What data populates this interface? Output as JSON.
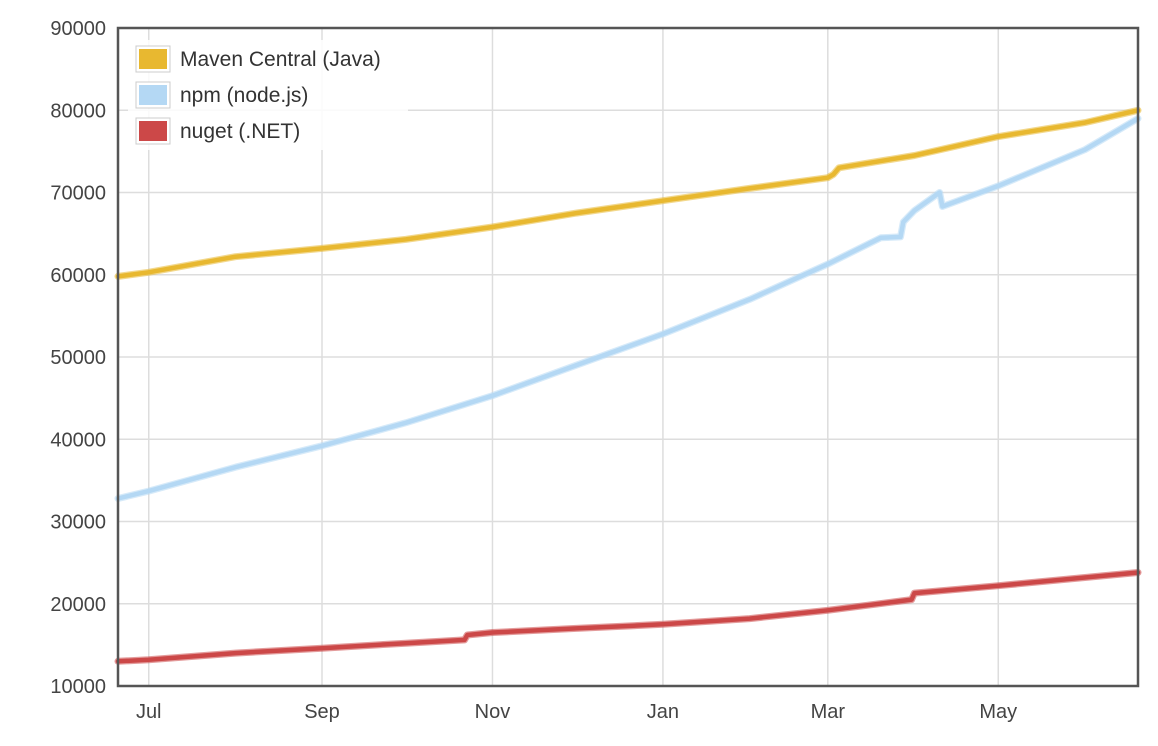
{
  "chart_data": {
    "type": "line",
    "x_axis": {
      "tick_labels": [
        "Jul",
        "Sep",
        "Nov",
        "Jan",
        "Mar",
        "May"
      ],
      "tick_dates": [
        "2014-07-01",
        "2014-09-01",
        "2014-11-01",
        "2015-01-01",
        "2015-03-01",
        "2015-05-01"
      ],
      "range": [
        "2014-06-20",
        "2015-06-20"
      ]
    },
    "y_axis": {
      "tick_labels": [
        "10000",
        "20000",
        "30000",
        "40000",
        "50000",
        "60000",
        "70000",
        "80000",
        "90000"
      ],
      "ylim": [
        10000,
        90000
      ]
    },
    "grid": true,
    "legend_position": "top-left",
    "series": [
      {
        "name": "Maven Central (Java)",
        "color": "#e8b830",
        "points": [
          [
            "2014-06-20",
            59800
          ],
          [
            "2014-07-01",
            60300
          ],
          [
            "2014-08-01",
            62200
          ],
          [
            "2014-09-01",
            63200
          ],
          [
            "2014-10-01",
            64300
          ],
          [
            "2014-11-01",
            65800
          ],
          [
            "2014-12-01",
            67500
          ],
          [
            "2015-01-01",
            69000
          ],
          [
            "2015-02-01",
            70500
          ],
          [
            "2015-03-01",
            71800
          ],
          [
            "2015-03-03",
            72200
          ],
          [
            "2015-03-05",
            73000
          ],
          [
            "2015-04-01",
            74500
          ],
          [
            "2015-05-01",
            76800
          ],
          [
            "2015-06-01",
            78500
          ],
          [
            "2015-06-20",
            80000
          ]
        ]
      },
      {
        "name": "npm (node.js)",
        "color": "#b4d8f4",
        "points": [
          [
            "2014-06-20",
            32800
          ],
          [
            "2014-07-01",
            33700
          ],
          [
            "2014-08-01",
            36600
          ],
          [
            "2014-09-01",
            39200
          ],
          [
            "2014-10-01",
            42000
          ],
          [
            "2014-11-01",
            45300
          ],
          [
            "2014-12-01",
            49000
          ],
          [
            "2015-01-01",
            52800
          ],
          [
            "2015-02-01",
            57000
          ],
          [
            "2015-03-01",
            61300
          ],
          [
            "2015-03-20",
            64500
          ],
          [
            "2015-03-27",
            64600
          ],
          [
            "2015-03-28",
            66400
          ],
          [
            "2015-04-01",
            67800
          ],
          [
            "2015-04-10",
            70000
          ],
          [
            "2015-04-11",
            68300
          ],
          [
            "2015-05-01",
            70800
          ],
          [
            "2015-06-01",
            75200
          ],
          [
            "2015-06-20",
            79000
          ]
        ]
      },
      {
        "name": "nuget (.NET)",
        "color": "#cc4848",
        "points": [
          [
            "2014-06-20",
            13000
          ],
          [
            "2014-07-01",
            13200
          ],
          [
            "2014-08-01",
            14000
          ],
          [
            "2014-09-01",
            14600
          ],
          [
            "2014-10-01",
            15200
          ],
          [
            "2014-10-22",
            15600
          ],
          [
            "2014-10-23",
            16200
          ],
          [
            "2014-11-01",
            16500
          ],
          [
            "2014-12-01",
            17000
          ],
          [
            "2015-01-01",
            17500
          ],
          [
            "2015-02-01",
            18200
          ],
          [
            "2015-03-01",
            19200
          ],
          [
            "2015-03-31",
            20500
          ],
          [
            "2015-04-01",
            21300
          ],
          [
            "2015-05-01",
            22200
          ],
          [
            "2015-06-20",
            23800
          ]
        ]
      }
    ]
  }
}
